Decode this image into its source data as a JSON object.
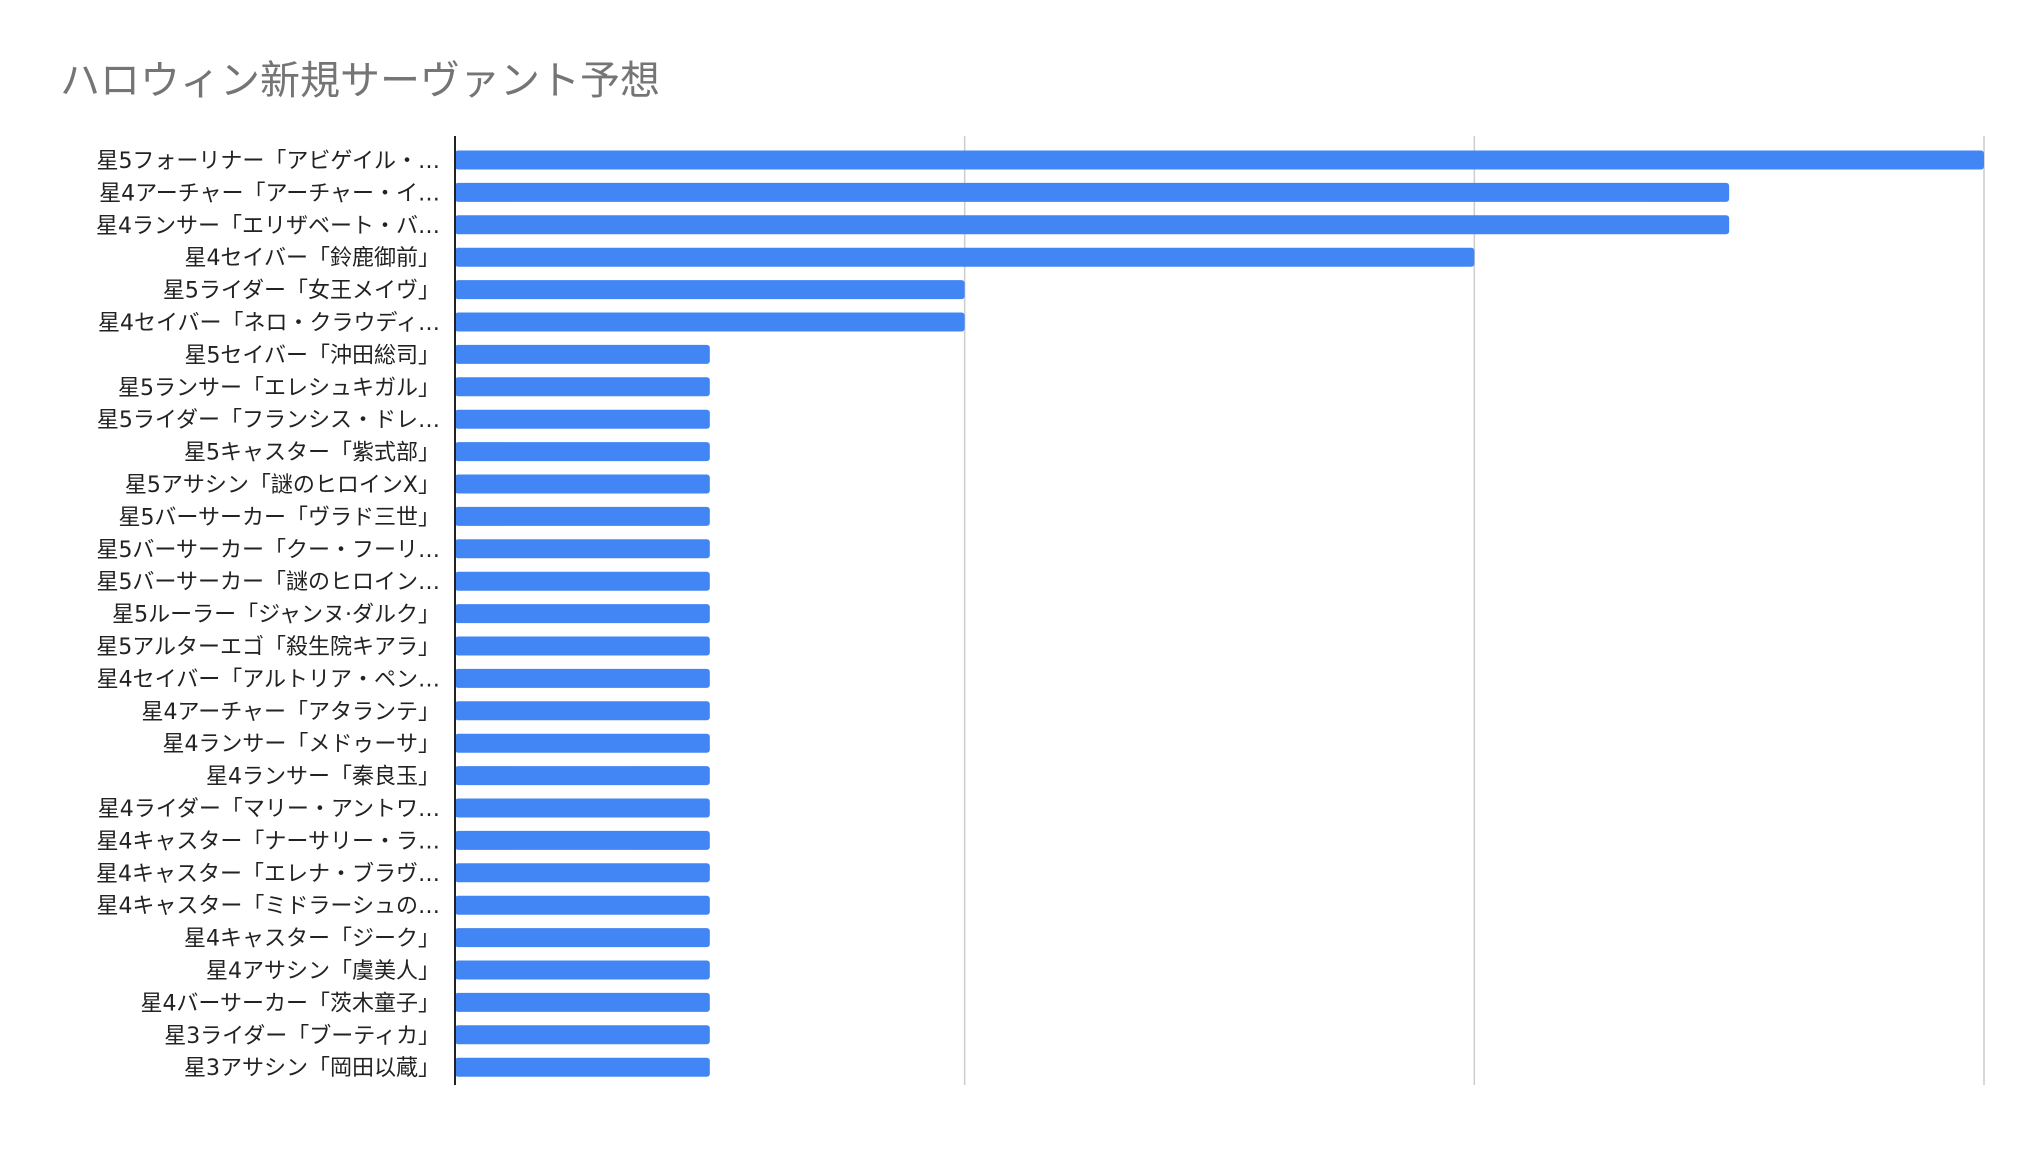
{
  "chart_data": {
    "type": "bar",
    "orientation": "horizontal",
    "title": "ハロウィン新規サーヴァント予想",
    "xlabel": "",
    "ylabel": "",
    "xlim": [
      0,
      6
    ],
    "grid": true,
    "legend": "none",
    "bar_color": "#4285f4",
    "categories": [
      "星5フォーリナー「アビゲイル・…",
      "星4アーチャー「アーチャー・イ…",
      "星4ランサー「エリザベート・バ…",
      "星4セイバー「鈴鹿御前」",
      "星5ライダー「女王メイヴ」",
      "星4セイバー「ネロ・クラウディ…",
      "星5セイバー「沖田総司」",
      "星5ランサー「エレシュキガル」",
      "星5ライダー「フランシス・ドレ…",
      "星5キャスター「紫式部」",
      "星5アサシン「謎のヒロインX」",
      "星5バーサーカー「ヴラド三世」",
      "星5バーサーカー「クー・フーリ…",
      "星5バーサーカー「謎のヒロイン…",
      "星5ルーラー「ジャンヌ·ダルク」",
      "星5アルターエゴ「殺生院キアラ」",
      "星4セイバー「アルトリア・ペン…",
      "星4アーチャー「アタランテ」",
      "星4ランサー「メドゥーサ」",
      "星4ランサー「秦良玉」",
      "星4ライダー「マリー・アントワ…",
      "星4キャスター「ナーサリー・ラ…",
      "星4キャスター「エレナ・ブラヴ…",
      "星4キャスター「ミドラーシュの…",
      "星4キャスター「ジーク」",
      "星4アサシン「虞美人」",
      "星4バーサーカー「茨木童子」",
      "星3ライダー「ブーティカ」",
      "星3アサシン「岡田以蔵」"
    ],
    "values": [
      6,
      5,
      5,
      4,
      2,
      2,
      1,
      1,
      1,
      1,
      1,
      1,
      1,
      1,
      1,
      1,
      1,
      1,
      1,
      1,
      1,
      1,
      1,
      1,
      1,
      1,
      1,
      1,
      1
    ]
  }
}
